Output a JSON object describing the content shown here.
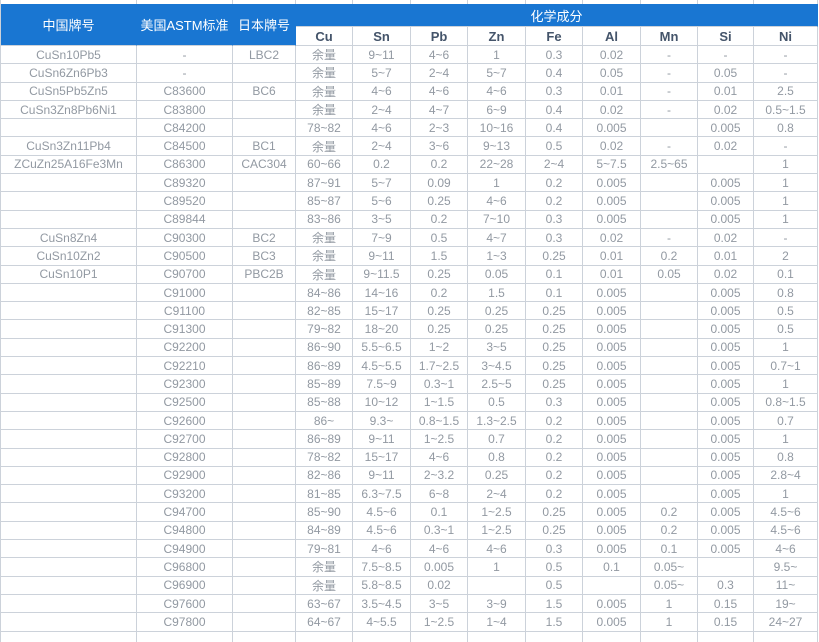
{
  "header": {
    "china_grade": "中国牌号",
    "us_astm": "美国ASTM标准",
    "japan_grade": "日本牌号",
    "chemical_composition": "化学成分",
    "elements": [
      "Cu",
      "Sn",
      "Pb",
      "Zn",
      "Fe",
      "Al",
      "Mn",
      "Si",
      "Ni"
    ]
  },
  "colors": {
    "header_bg": "#1976d2",
    "header_text": "#ffffff",
    "subheader_text": "#44546a",
    "data_text": "#9299a2",
    "border": "#ccd2da"
  },
  "rows": [
    [
      "CuSn10Pb5",
      "-",
      "LBC2",
      "余量",
      "9~11",
      "4~6",
      "1",
      "0.3",
      "0.02",
      "-",
      "-",
      "-"
    ],
    [
      "CuSn6Zn6Pb3",
      "-",
      "",
      "余量",
      "5~7",
      "2~4",
      "5~7",
      "0.4",
      "0.05",
      "-",
      "0.05",
      "-"
    ],
    [
      "CuSn5Pb5Zn5",
      "C83600",
      "BC6",
      "余量",
      "4~6",
      "4~6",
      "4~6",
      "0.3",
      "0.01",
      "-",
      "0.01",
      "2.5"
    ],
    [
      "CuSn3Zn8Pb6Ni1",
      "C83800",
      "",
      "余量",
      "2~4",
      "4~7",
      "6~9",
      "0.4",
      "0.02",
      "-",
      "0.02",
      "0.5~1.5"
    ],
    [
      "",
      "C84200",
      "",
      "78~82",
      "4~6",
      "2~3",
      "10~16",
      "0.4",
      "0.005",
      "",
      "0.005",
      "0.8"
    ],
    [
      "CuSn3Zn11Pb4",
      "C84500",
      "BC1",
      "余量",
      "2~4",
      "3~6",
      "9~13",
      "0.5",
      "0.02",
      "-",
      "0.02",
      "-"
    ],
    [
      "ZCuZn25A16Fe3Mn",
      "C86300",
      "CAC304",
      "60~66",
      "0.2",
      "0.2",
      "22~28",
      "2~4",
      "5~7.5",
      "2.5~65",
      "",
      "1"
    ],
    [
      "",
      "C89320",
      "",
      "87~91",
      "5~7",
      "0.09",
      "1",
      "0.2",
      "0.005",
      "",
      "0.005",
      "1"
    ],
    [
      "",
      "C89520",
      "",
      "85~87",
      "5~6",
      "0.25",
      "4~6",
      "0.2",
      "0.005",
      "",
      "0.005",
      "1"
    ],
    [
      "",
      "C89844",
      "",
      "83~86",
      "3~5",
      "0.2",
      "7~10",
      "0.3",
      "0.005",
      "",
      "0.005",
      "1"
    ],
    [
      "CuSn8Zn4",
      "C90300",
      "BC2",
      "余量",
      "7~9",
      "0.5",
      "4~7",
      "0.3",
      "0.02",
      "-",
      "0.02",
      "-"
    ],
    [
      "CuSn10Zn2",
      "C90500",
      "BC3",
      "余量",
      "9~11",
      "1.5",
      "1~3",
      "0.25",
      "0.01",
      "0.2",
      "0.01",
      "2"
    ],
    [
      "CuSn10P1",
      "C90700",
      "PBC2B",
      "余量",
      "9~11.5",
      "0.25",
      "0.05",
      "0.1",
      "0.01",
      "0.05",
      "0.02",
      "0.1"
    ],
    [
      "",
      "C91000",
      "",
      "84~86",
      "14~16",
      "0.2",
      "1.5",
      "0.1",
      "0.005",
      "",
      "0.005",
      "0.8"
    ],
    [
      "",
      "C91100",
      "",
      "82~85",
      "15~17",
      "0.25",
      "0.25",
      "0.25",
      "0.005",
      "",
      "0.005",
      "0.5"
    ],
    [
      "",
      "C91300",
      "",
      "79~82",
      "18~20",
      "0.25",
      "0.25",
      "0.25",
      "0.005",
      "",
      "0.005",
      "0.5"
    ],
    [
      "",
      "C92200",
      "",
      "86~90",
      "5.5~6.5",
      "1~2",
      "3~5",
      "0.25",
      "0.005",
      "",
      "0.005",
      "1"
    ],
    [
      "",
      "C92210",
      "",
      "86~89",
      "4.5~5.5",
      "1.7~2.5",
      "3~4.5",
      "0.25",
      "0.005",
      "",
      "0.005",
      "0.7~1"
    ],
    [
      "",
      "C92300",
      "",
      "85~89",
      "7.5~9",
      "0.3~1",
      "2.5~5",
      "0.25",
      "0.005",
      "",
      "0.005",
      "1"
    ],
    [
      "",
      "C92500",
      "",
      "85~88",
      "10~12",
      "1~1.5",
      "0.5",
      "0.3",
      "0.005",
      "",
      "0.005",
      "0.8~1.5"
    ],
    [
      "",
      "C92600",
      "",
      "86~",
      "9.3~",
      "0.8~1.5",
      "1.3~2.5",
      "0.2",
      "0.005",
      "",
      "0.005",
      "0.7"
    ],
    [
      "",
      "C92700",
      "",
      "86~89",
      "9~11",
      "1~2.5",
      "0.7",
      "0.2",
      "0.005",
      "",
      "0.005",
      "1"
    ],
    [
      "",
      "C92800",
      "",
      "78~82",
      "15~17",
      "4~6",
      "0.8",
      "0.2",
      "0.005",
      "",
      "0.005",
      "0.8"
    ],
    [
      "",
      "C92900",
      "",
      "82~86",
      "9~11",
      "2~3.2",
      "0.25",
      "0.2",
      "0.005",
      "",
      "0.005",
      "2.8~4"
    ],
    [
      "",
      "C93200",
      "",
      "81~85",
      "6.3~7.5",
      "6~8",
      "2~4",
      "0.2",
      "0.005",
      "",
      "0.005",
      "1"
    ],
    [
      "",
      "C94700",
      "",
      "85~90",
      "4.5~6",
      "0.1",
      "1~2.5",
      "0.25",
      "0.005",
      "0.2",
      "0.005",
      "4.5~6"
    ],
    [
      "",
      "C94800",
      "",
      "84~89",
      "4.5~6",
      "0.3~1",
      "1~2.5",
      "0.25",
      "0.005",
      "0.2",
      "0.005",
      "4.5~6"
    ],
    [
      "",
      "C94900",
      "",
      "79~81",
      "4~6",
      "4~6",
      "4~6",
      "0.3",
      "0.005",
      "0.1",
      "0.005",
      "4~6"
    ],
    [
      "",
      "C96800",
      "",
      "余量",
      "7.5~8.5",
      "0.005",
      "1",
      "0.5",
      "0.1",
      "0.05~",
      "",
      "9.5~"
    ],
    [
      "",
      "C96900",
      "",
      "余量",
      "5.8~8.5",
      "0.02",
      "",
      "0.5",
      "",
      "0.05~",
      "0.3",
      "11~"
    ],
    [
      "",
      "C97600",
      "",
      "63~67",
      "3.5~4.5",
      "3~5",
      "3~9",
      "1.5",
      "0.005",
      "1",
      "0.15",
      "19~"
    ],
    [
      "",
      "C97800",
      "",
      "64~67",
      "4~5.5",
      "1~2.5",
      "1~4",
      "1.5",
      "0.005",
      "1",
      "0.15",
      "24~27"
    ]
  ]
}
